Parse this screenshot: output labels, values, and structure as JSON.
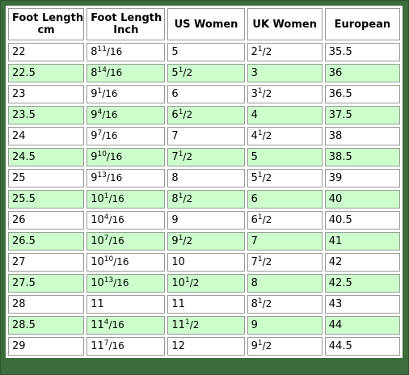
{
  "headers": [
    {
      "line1": "Foot Length",
      "line2": "cm"
    },
    {
      "line1": "Foot Length",
      "line2": "Inch"
    },
    {
      "line1": "US Women",
      "line2": ""
    },
    {
      "line1": "UK Women",
      "line2": ""
    },
    {
      "line1": "European",
      "line2": ""
    }
  ],
  "rows": [
    {
      "cm": "22",
      "in_whole": "8",
      "in_num": "11",
      "in_den": "/16",
      "us_whole": "5",
      "us_num": "",
      "us_den": "",
      "uk_whole": "2",
      "uk_num": "1",
      "uk_den": "/2",
      "eu": "35.5"
    },
    {
      "cm": "22.5",
      "in_whole": "8",
      "in_num": "14",
      "in_den": "/16",
      "us_whole": "5",
      "us_num": "1",
      "us_den": "/2",
      "uk_whole": "3",
      "uk_num": "",
      "uk_den": "",
      "eu": "36"
    },
    {
      "cm": "23",
      "in_whole": "9",
      "in_num": "1",
      "in_den": "/16",
      "us_whole": "6",
      "us_num": "",
      "us_den": "",
      "uk_whole": "3",
      "uk_num": "1",
      "uk_den": "/2",
      "eu": "36.5"
    },
    {
      "cm": "23.5",
      "in_whole": "9",
      "in_num": "4",
      "in_den": "/16",
      "us_whole": "6",
      "us_num": "1",
      "us_den": "/2",
      "uk_whole": "4",
      "uk_num": "",
      "uk_den": "",
      "eu": "37.5"
    },
    {
      "cm": "24",
      "in_whole": "9",
      "in_num": "7",
      "in_den": "/16",
      "us_whole": "7",
      "us_num": "",
      "us_den": "",
      "uk_whole": "4",
      "uk_num": "1",
      "uk_den": "/2",
      "eu": "38"
    },
    {
      "cm": "24.5",
      "in_whole": "9",
      "in_num": "10",
      "in_den": "/16",
      "us_whole": "7",
      "us_num": "1",
      "us_den": "/2",
      "uk_whole": "5",
      "uk_num": "",
      "uk_den": "",
      "eu": "38.5"
    },
    {
      "cm": "25",
      "in_whole": "9",
      "in_num": "13",
      "in_den": "/16",
      "us_whole": "8",
      "us_num": "",
      "us_den": "",
      "uk_whole": "5",
      "uk_num": "1",
      "uk_den": "/2",
      "eu": "39"
    },
    {
      "cm": "25.5",
      "in_whole": "10",
      "in_num": "1",
      "in_den": "/16",
      "us_whole": "8",
      "us_num": "1",
      "us_den": "/2",
      "uk_whole": "6",
      "uk_num": "",
      "uk_den": "",
      "eu": "40"
    },
    {
      "cm": "26",
      "in_whole": "10",
      "in_num": "4",
      "in_den": "/16",
      "us_whole": "9",
      "us_num": "",
      "us_den": "",
      "uk_whole": "6",
      "uk_num": "1",
      "uk_den": "/2",
      "eu": "40.5"
    },
    {
      "cm": "26.5",
      "in_whole": "10",
      "in_num": "7",
      "in_den": "/16",
      "us_whole": "9",
      "us_num": "1",
      "us_den": "/2",
      "uk_whole": "7",
      "uk_num": "",
      "uk_den": "",
      "eu": "41"
    },
    {
      "cm": "27",
      "in_whole": "10",
      "in_num": "10",
      "in_den": "/16",
      "us_whole": "10",
      "us_num": "",
      "us_den": "",
      "uk_whole": "7",
      "uk_num": "1",
      "uk_den": "/2",
      "eu": "42"
    },
    {
      "cm": "27.5",
      "in_whole": "10",
      "in_num": "13",
      "in_den": "/16",
      "us_whole": "10",
      "us_num": "1",
      "us_den": "/2",
      "uk_whole": "8",
      "uk_num": "",
      "uk_den": "",
      "eu": "42.5"
    },
    {
      "cm": "28",
      "in_whole": "11",
      "in_num": "",
      "in_den": "",
      "us_whole": "11",
      "us_num": "",
      "us_den": "",
      "uk_whole": "8",
      "uk_num": "1",
      "uk_den": "/2",
      "eu": "43"
    },
    {
      "cm": "28.5",
      "in_whole": "11",
      "in_num": "4",
      "in_den": "/16",
      "us_whole": "11",
      "us_num": "1",
      "us_den": "/2",
      "uk_whole": "9",
      "uk_num": "",
      "uk_den": "",
      "eu": "44"
    },
    {
      "cm": "29",
      "in_whole": "11",
      "in_num": "7",
      "in_den": "/16",
      "us_whole": "12",
      "us_num": "",
      "us_den": "",
      "uk_whole": "9",
      "uk_num": "1",
      "uk_den": "/2",
      "eu": "44.5"
    }
  ],
  "colors": {
    "frame": "#3c6b3c",
    "alt_row": "#ccffcc",
    "cell_border": "#999999"
  }
}
